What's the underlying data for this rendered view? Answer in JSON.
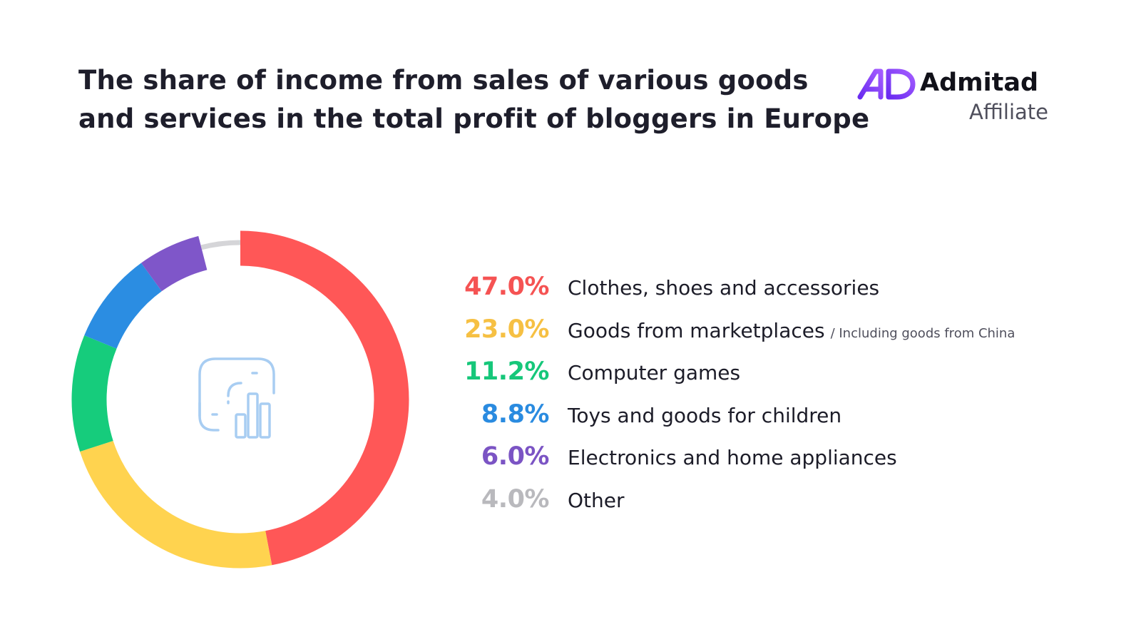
{
  "title_lines": [
    "The share of income from sales of various goods",
    "and services in the total profit of bloggers in Europe"
  ],
  "brand": {
    "name": "Admitad",
    "sub": "Affiliate",
    "accent": "#7b3ff2"
  },
  "center_icon": "chart-analytics-icon",
  "chart_data": {
    "type": "pie",
    "variant": "donut",
    "title": "The share of income from sales of various goods and services in the total profit of bloggers in Europe",
    "unit": "%",
    "categories": [
      "Clothes, shoes and accessories",
      "Goods from marketplaces",
      "Computer games",
      "Toys and goods for children",
      "Electronics and home appliances",
      "Other"
    ],
    "values": [
      47.0,
      23.0,
      11.2,
      8.8,
      6.0,
      4.0
    ],
    "value_labels": [
      "47.0%",
      "23.0%",
      "11.2%",
      "8.8%",
      "6.0%",
      "4.0%"
    ],
    "notes": [
      "",
      "/ Including goods from China",
      "",
      "",
      "",
      ""
    ],
    "colors": [
      "#ff5757",
      "#ffd34f",
      "#16cc7c",
      "#2b8de2",
      "#7f56c9",
      "#d5d5d8"
    ],
    "label_colors": [
      "#f55353",
      "#f6c043",
      "#16c77a",
      "#2a8be0",
      "#7b54c4",
      "#b9b9bd"
    ],
    "start": "top",
    "direction": "clockwise",
    "legend_position": "right"
  }
}
